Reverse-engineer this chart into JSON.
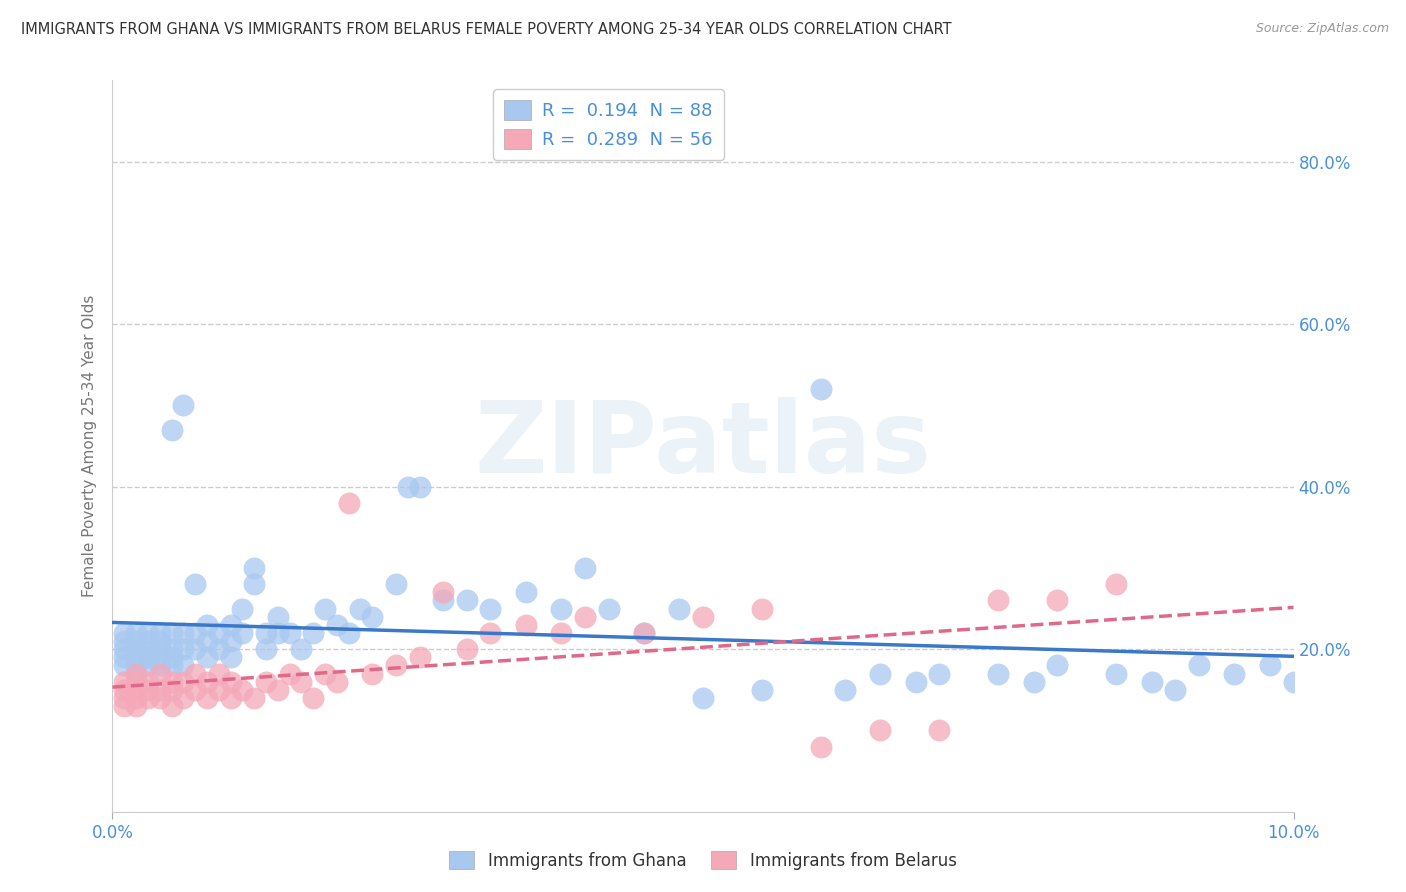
{
  "title": "IMMIGRANTS FROM GHANA VS IMMIGRANTS FROM BELARUS FEMALE POVERTY AMONG 25-34 YEAR OLDS CORRELATION CHART",
  "source": "Source: ZipAtlas.com",
  "ylabel": "Female Poverty Among 25-34 Year Olds",
  "xlabel_ghana": "Immigrants from Ghana",
  "xlabel_belarus": "Immigrants from Belarus",
  "ghana_R": 0.194,
  "ghana_N": 88,
  "belarus_R": 0.289,
  "belarus_N": 56,
  "xlim": [
    0.0,
    0.1
  ],
  "ylim": [
    0.0,
    0.9
  ],
  "ytick_positions": [
    0.2,
    0.4,
    0.6,
    0.8
  ],
  "ytick_labels": [
    "20.0%",
    "40.0%",
    "60.0%",
    "80.0%"
  ],
  "xtick_positions": [
    0.0,
    0.1
  ],
  "xtick_labels": [
    "0.0%",
    "10.0%"
  ],
  "ghana_color": "#A8C8F0",
  "belarus_color": "#F4A8B8",
  "ghana_line_color": "#3A78C9",
  "belarus_line_color": "#E06888",
  "background_color": "#FFFFFF",
  "watermark_text": "ZIPatlas",
  "ghana_x": [
    0.001,
    0.001,
    0.001,
    0.001,
    0.001,
    0.002,
    0.002,
    0.002,
    0.002,
    0.002,
    0.002,
    0.002,
    0.003,
    0.003,
    0.003,
    0.003,
    0.003,
    0.003,
    0.004,
    0.004,
    0.004,
    0.004,
    0.004,
    0.005,
    0.005,
    0.005,
    0.005,
    0.005,
    0.006,
    0.006,
    0.006,
    0.006,
    0.007,
    0.007,
    0.007,
    0.008,
    0.008,
    0.008,
    0.009,
    0.009,
    0.01,
    0.01,
    0.01,
    0.011,
    0.011,
    0.012,
    0.012,
    0.013,
    0.013,
    0.014,
    0.014,
    0.015,
    0.016,
    0.017,
    0.018,
    0.019,
    0.02,
    0.021,
    0.022,
    0.024,
    0.025,
    0.026,
    0.028,
    0.03,
    0.032,
    0.035,
    0.038,
    0.04,
    0.042,
    0.045,
    0.048,
    0.05,
    0.055,
    0.06,
    0.062,
    0.065,
    0.068,
    0.07,
    0.075,
    0.078,
    0.08,
    0.085,
    0.088,
    0.09,
    0.092,
    0.095,
    0.098,
    0.1
  ],
  "ghana_y": [
    0.2,
    0.21,
    0.19,
    0.18,
    0.22,
    0.18,
    0.2,
    0.19,
    0.21,
    0.22,
    0.17,
    0.2,
    0.19,
    0.2,
    0.18,
    0.21,
    0.22,
    0.19,
    0.2,
    0.19,
    0.21,
    0.18,
    0.22,
    0.18,
    0.2,
    0.22,
    0.19,
    0.47,
    0.18,
    0.2,
    0.22,
    0.5,
    0.2,
    0.22,
    0.28,
    0.19,
    0.21,
    0.23,
    0.2,
    0.22,
    0.21,
    0.23,
    0.19,
    0.22,
    0.25,
    0.3,
    0.28,
    0.2,
    0.22,
    0.22,
    0.24,
    0.22,
    0.2,
    0.22,
    0.25,
    0.23,
    0.22,
    0.25,
    0.24,
    0.28,
    0.4,
    0.4,
    0.26,
    0.26,
    0.25,
    0.27,
    0.25,
    0.3,
    0.25,
    0.22,
    0.25,
    0.14,
    0.15,
    0.52,
    0.15,
    0.17,
    0.16,
    0.17,
    0.17,
    0.16,
    0.18,
    0.17,
    0.16,
    0.15,
    0.18,
    0.17,
    0.18,
    0.16
  ],
  "belarus_x": [
    0.001,
    0.001,
    0.001,
    0.001,
    0.002,
    0.002,
    0.002,
    0.002,
    0.002,
    0.003,
    0.003,
    0.003,
    0.004,
    0.004,
    0.004,
    0.005,
    0.005,
    0.005,
    0.006,
    0.006,
    0.007,
    0.007,
    0.008,
    0.008,
    0.009,
    0.009,
    0.01,
    0.01,
    0.011,
    0.012,
    0.013,
    0.014,
    0.015,
    0.016,
    0.017,
    0.018,
    0.019,
    0.02,
    0.022,
    0.024,
    0.026,
    0.028,
    0.03,
    0.032,
    0.035,
    0.038,
    0.04,
    0.045,
    0.05,
    0.055,
    0.06,
    0.065,
    0.07,
    0.075,
    0.08,
    0.085
  ],
  "belarus_y": [
    0.15,
    0.16,
    0.14,
    0.13,
    0.14,
    0.15,
    0.16,
    0.17,
    0.13,
    0.15,
    0.16,
    0.14,
    0.15,
    0.17,
    0.14,
    0.13,
    0.15,
    0.16,
    0.14,
    0.16,
    0.15,
    0.17,
    0.14,
    0.16,
    0.15,
    0.17,
    0.14,
    0.16,
    0.15,
    0.14,
    0.16,
    0.15,
    0.17,
    0.16,
    0.14,
    0.17,
    0.16,
    0.38,
    0.17,
    0.18,
    0.19,
    0.27,
    0.2,
    0.22,
    0.23,
    0.22,
    0.24,
    0.22,
    0.24,
    0.25,
    0.08,
    0.1,
    0.1,
    0.26,
    0.26,
    0.28
  ]
}
